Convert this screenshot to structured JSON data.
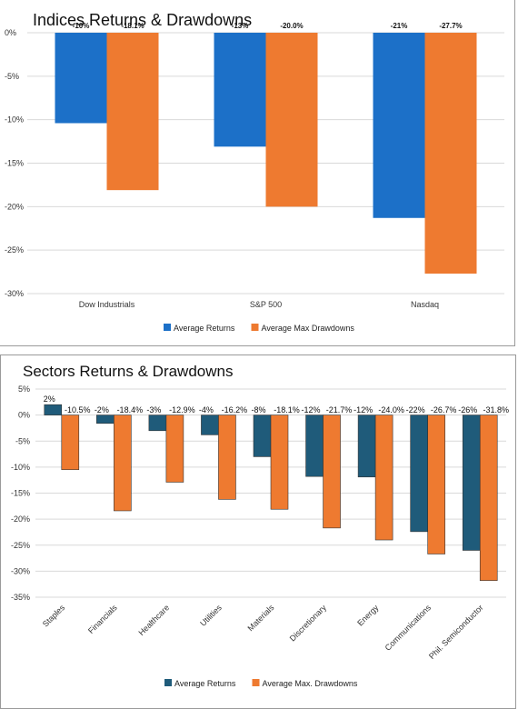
{
  "charts": [
    {
      "chart_data": {
        "type": "bar",
        "title": "Indices Returns & Drawdowns",
        "categories": [
          "Dow Industrials",
          "S&P 500",
          "Nasdaq"
        ],
        "series": [
          {
            "name": "Average Returns",
            "color": "#1c70c8",
            "values": [
              -10.4,
              -13.1,
              -21.3
            ],
            "labels": [
              "-10%",
              "-13%",
              "-21%"
            ]
          },
          {
            "name": "Average Max Drawdowns",
            "color": "#ee7a30",
            "values": [
              -18.1,
              -20.0,
              -27.7
            ],
            "labels": [
              "-18.1%",
              "-20.0%",
              "-27.7%"
            ]
          }
        ],
        "ylim": [
          -30,
          0
        ],
        "yticks": [
          0,
          -5,
          -10,
          -15,
          -20,
          -25,
          -30
        ],
        "ytick_labels": [
          "0%",
          "-5%",
          "-10%",
          "-15%",
          "-20%",
          "-25%",
          "-30%"
        ],
        "grid": true,
        "legend": "bottom"
      }
    },
    {
      "chart_data": {
        "type": "bar",
        "title": "Sectors Returns & Drawdowns",
        "categories": [
          "Staples",
          "Financials",
          "Healthcare",
          "Utilities",
          "Materials",
          "Discretionary",
          "Energy",
          "Communications",
          "Phil. Semiconductor"
        ],
        "series": [
          {
            "name": "Average Returns",
            "color": "#1f5b7a",
            "values": [
              2,
              -1.6,
              -3,
              -3.8,
              -8,
              -11.8,
              -11.9,
              -22.4,
              -26
            ],
            "labels": [
              "2%",
              "-2%",
              "-3%",
              "-4%",
              "-8%",
              "-12%",
              "-12%",
              "-22%",
              "-26%"
            ]
          },
          {
            "name": "Average Max. Drawdowns",
            "color": "#ee7a30",
            "values": [
              -10.5,
              -18.4,
              -12.9,
              -16.2,
              -18.1,
              -21.7,
              -24.0,
              -26.7,
              -31.8
            ],
            "labels": [
              "-10.5%",
              "-18.4%",
              "-12.9%",
              "-16.2%",
              "-18.1%",
              "-21.7%",
              "-24.0%",
              "-26.7%",
              "-31.8%"
            ]
          }
        ],
        "ylim": [
          -35,
          5
        ],
        "yticks": [
          5,
          0,
          -5,
          -10,
          -15,
          -20,
          -25,
          -30,
          -35
        ],
        "ytick_labels": [
          "5%",
          "0%",
          "-5%",
          "-10%",
          "-15%",
          "-20%",
          "-25%",
          "-30%",
          "-35%"
        ],
        "grid": true,
        "legend": "bottom"
      }
    }
  ]
}
